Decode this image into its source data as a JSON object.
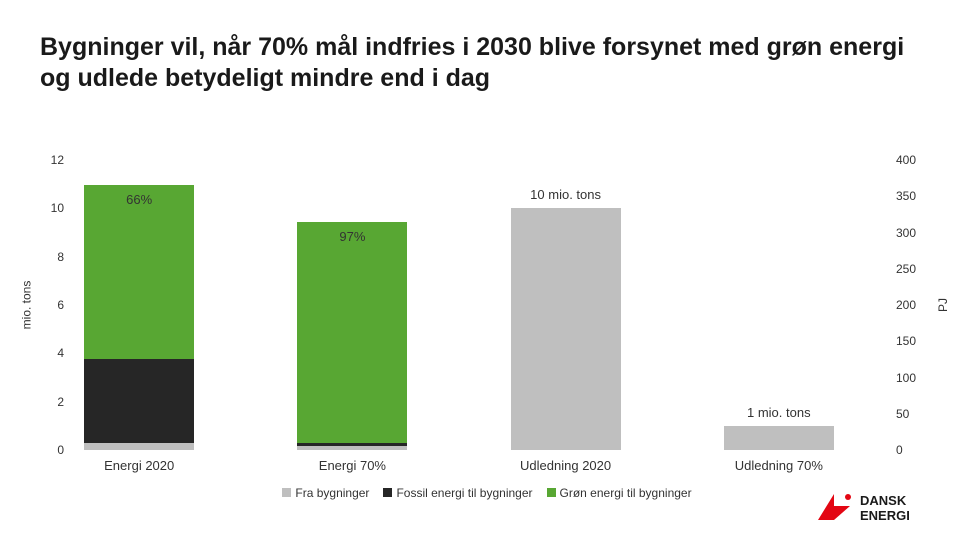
{
  "title": "Bygninger vil, når 70% mål indfries i 2030 blive forsynet med grøn energi og udlede betydeligt mindre end i dag",
  "chart": {
    "type": "stacked-bar-dual-axis",
    "left_axis": {
      "label": "mio. tons",
      "min": 0,
      "max": 12,
      "step": 2
    },
    "right_axis": {
      "label": "PJ",
      "min": 0,
      "max": 400,
      "step": 50
    },
    "categories": [
      "Energi 2020",
      "Energi 70%",
      "Udledning 2020",
      "Udledning 70%"
    ],
    "series_colors": {
      "fra_bygninger": "#bfbfbf",
      "fossil": "#262626",
      "gron": "#58a733"
    },
    "bars": [
      {
        "axis": "right",
        "segments": [
          {
            "series": "fra_bygninger",
            "value": 10
          },
          {
            "series": "fossil",
            "value": 115
          },
          {
            "series": "gron",
            "value": 240
          }
        ],
        "pct_top": "66%"
      },
      {
        "axis": "right",
        "segments": [
          {
            "series": "fra_bygninger",
            "value": 5
          },
          {
            "series": "fossil",
            "value": 5
          },
          {
            "series": "gron",
            "value": 305
          }
        ],
        "pct_top": "97%"
      },
      {
        "axis": "left",
        "segments": [
          {
            "series": "fra_bygninger",
            "value": 10
          }
        ],
        "annotation": "10 mio. tons"
      },
      {
        "axis": "left",
        "segments": [
          {
            "series": "fra_bygninger",
            "value": 1
          }
        ],
        "annotation": "1 mio. tons"
      }
    ],
    "legend": [
      {
        "series": "fra_bygninger",
        "label": "Fra bygninger"
      },
      {
        "series": "fossil",
        "label": "Fossil energi til bygninger"
      },
      {
        "series": "gron",
        "label": "Grøn energi til bygninger"
      }
    ],
    "col_positions_pct": [
      6,
      32,
      58,
      84
    ],
    "background": "#ffffff"
  },
  "logo": {
    "brand_top": "DANSK",
    "brand_bottom": "ENERGI",
    "mark_color": "#e30613"
  }
}
